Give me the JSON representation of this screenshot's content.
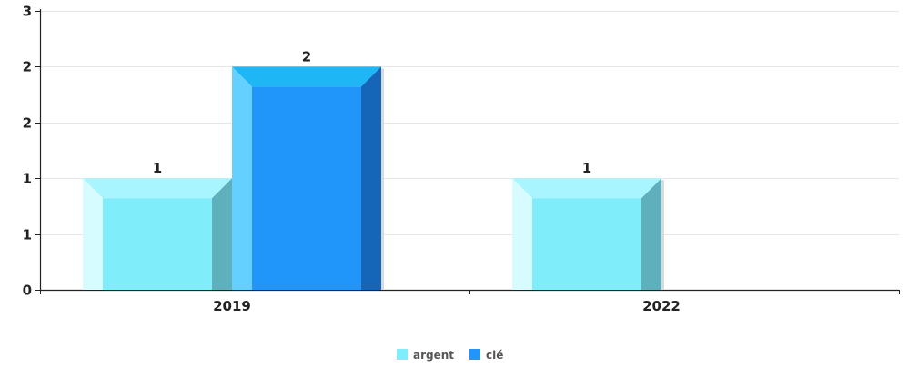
{
  "chart_data": {
    "type": "bar",
    "categories": [
      "2019",
      "2022"
    ],
    "series": [
      {
        "name": "argent",
        "values": [
          1,
          1
        ],
        "color": "#80EEFA"
      },
      {
        "name": "clé",
        "values": [
          2,
          0
        ],
        "color": "#2196FA"
      }
    ],
    "y_tick_labels": [
      "0",
      "1",
      "1",
      "2",
      "2",
      "3"
    ],
    "y_tick_values": [
      0,
      0.5,
      1,
      1.5,
      2,
      2.5
    ],
    "ylim": [
      0,
      2.5
    ],
    "data_labels": [
      [
        "1",
        "1"
      ],
      [
        "2",
        ""
      ]
    ],
    "grid": true,
    "legend_position": "bottom"
  }
}
